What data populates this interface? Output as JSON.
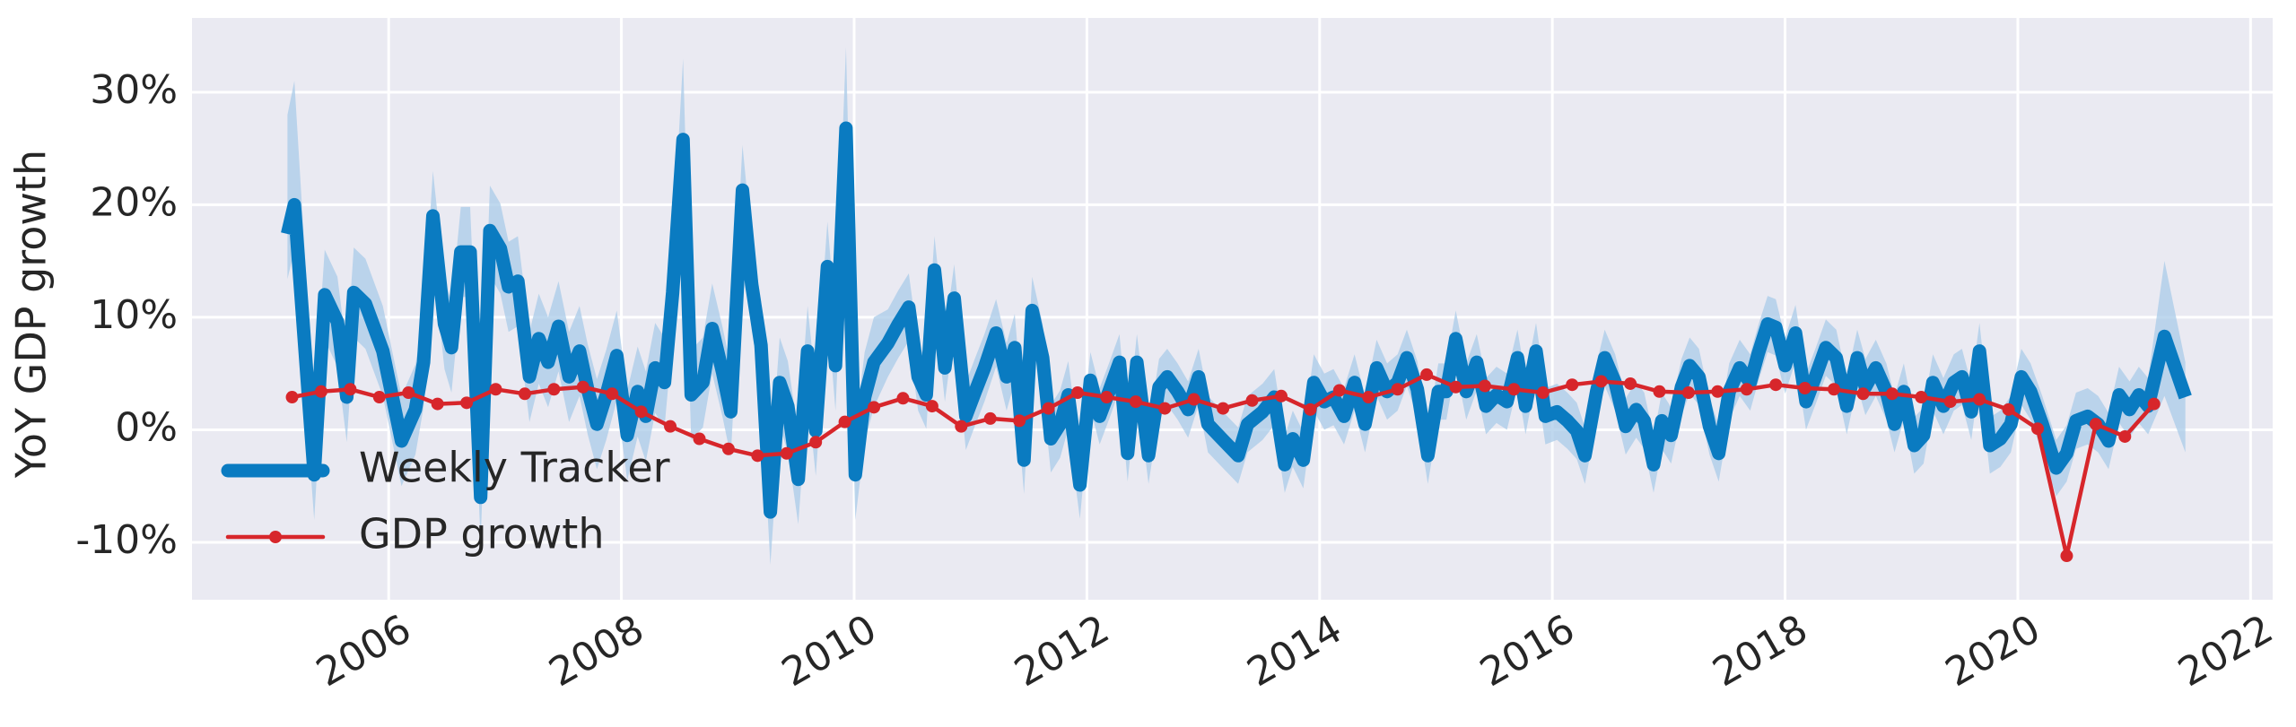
{
  "chart_data": {
    "type": "line",
    "ylabel": "YoY GDP growth",
    "xlim": [
      2004.31,
      2022.19
    ],
    "xticks": [
      2006,
      2008,
      2010,
      2012,
      2014,
      2016,
      2018,
      2020,
      2022
    ],
    "ylim": [
      -15.1,
      36.6
    ],
    "yticks": [
      {
        "value": -10,
        "label": "-10%"
      },
      {
        "value": 0,
        "label": "0%"
      },
      {
        "value": 10,
        "label": "10%"
      },
      {
        "value": 20,
        "label": "20%"
      },
      {
        "value": 30,
        "label": "30%"
      }
    ],
    "grid": true,
    "legend": "lower left",
    "series": [
      {
        "name": "Weekly Tracker",
        "color": "#0a7bc1",
        "band_color": "#a9cbe8",
        "x": [
          2005.13,
          2005.19,
          2005.36,
          2005.45,
          2005.56,
          2005.64,
          2005.7,
          2005.8,
          2005.95,
          2006.11,
          2006.23,
          2006.3,
          2006.38,
          2006.48,
          2006.54,
          2006.62,
          2006.7,
          2006.79,
          2006.87,
          2006.96,
          2007.03,
          2007.11,
          2007.21,
          2007.29,
          2007.37,
          2007.46,
          2007.55,
          2007.64,
          2007.71,
          2007.79,
          2007.87,
          2007.96,
          2008.05,
          2008.14,
          2008.21,
          2008.29,
          2008.37,
          2008.44,
          2008.53,
          2008.6,
          2008.7,
          2008.78,
          2008.87,
          2008.94,
          2009.04,
          2009.12,
          2009.2,
          2009.28,
          2009.36,
          2009.43,
          2009.52,
          2009.6,
          2009.67,
          2009.77,
          2009.84,
          2009.93,
          2010.01,
          2010.09,
          2010.17,
          2010.29,
          2010.38,
          2010.47,
          2010.55,
          2010.62,
          2010.69,
          2010.78,
          2010.86,
          2010.96,
          2011.04,
          2011.12,
          2011.22,
          2011.31,
          2011.38,
          2011.46,
          2011.53,
          2011.62,
          2011.69,
          2011.77,
          2011.84,
          2011.94,
          2012.03,
          2012.11,
          2012.19,
          2012.28,
          2012.35,
          2012.43,
          2012.53,
          2012.62,
          2012.69,
          2012.78,
          2012.87,
          2012.96,
          2013.04,
          2013.16,
          2013.3,
          2013.38,
          2013.51,
          2013.61,
          2013.7,
          2013.77,
          2013.86,
          2013.95,
          2014.04,
          2014.12,
          2014.21,
          2014.3,
          2014.39,
          2014.49,
          2014.58,
          2014.67,
          2014.75,
          2014.84,
          2014.93,
          2015.02,
          2015.09,
          2015.17,
          2015.26,
          2015.35,
          2015.43,
          2015.52,
          2015.61,
          2015.7,
          2015.77,
          2015.86,
          2015.94,
          2016.04,
          2016.13,
          2016.21,
          2016.28,
          2016.38,
          2016.45,
          2016.54,
          2016.63,
          2016.72,
          2016.79,
          2016.87,
          2016.94,
          2017.02,
          2017.11,
          2017.18,
          2017.26,
          2017.35,
          2017.43,
          2017.52,
          2017.61,
          2017.7,
          2017.77,
          2017.85,
          2017.92,
          2018.0,
          2018.09,
          2018.18,
          2018.26,
          2018.35,
          2018.44,
          2018.53,
          2018.62,
          2018.69,
          2018.78,
          2018.87,
          2018.94,
          2019.02,
          2019.11,
          2019.19,
          2019.27,
          2019.36,
          2019.45,
          2019.52,
          2019.6,
          2019.67,
          2019.76,
          2019.85,
          2019.94,
          2020.03,
          2020.11,
          2020.21,
          2020.33,
          2020.42,
          2020.5,
          2020.6,
          2020.69,
          2020.78,
          2020.87,
          2020.96,
          2021.04,
          2021.12,
          2021.26,
          2021.44
        ],
        "values": [
          17.4,
          20,
          -4,
          12,
          9.6,
          2.9,
          12.2,
          11.2,
          7,
          -1,
          1.8,
          6,
          19,
          9.4,
          7.3,
          15.8,
          15.8,
          -6,
          17.7,
          16.1,
          12.7,
          13.2,
          4.7,
          8.1,
          6,
          9.2,
          4.7,
          7,
          3.6,
          0.5,
          3.1,
          6.6,
          -0.5,
          3.4,
          1.2,
          5.5,
          4.2,
          12.2,
          25.8,
          3.1,
          4.2,
          9,
          5.1,
          1.6,
          21.3,
          12.9,
          7.5,
          -7.3,
          4.2,
          2.1,
          -4.4,
          7,
          -0.1,
          14.5,
          5.7,
          26.8,
          -4,
          2.9,
          6,
          7.7,
          9.4,
          10.9,
          4.7,
          3.1,
          14.2,
          5.5,
          11.7,
          1.2,
          3.4,
          5.5,
          8.6,
          4.7,
          7.3,
          -2.7,
          10.6,
          6.4,
          -0.8,
          0.5,
          3.1,
          -4.9,
          4.4,
          1.2,
          3.4,
          6,
          -2.1,
          6,
          -2.3,
          3.8,
          4.7,
          3.4,
          1.8,
          4.7,
          0.5,
          -0.8,
          -2.3,
          0.5,
          1.6,
          2.9,
          -3.1,
          -0.8,
          -2.7,
          4.2,
          2.5,
          2.9,
          1.2,
          4.2,
          0.5,
          5.5,
          3.4,
          4.2,
          6.4,
          3.6,
          -2.3,
          3.4,
          3.4,
          8.1,
          3.4,
          6,
          2.1,
          3.1,
          2.5,
          6.4,
          2.1,
          7,
          1.2,
          1.6,
          0.8,
          -0.1,
          -2.3,
          3.4,
          6.4,
          4.2,
          0.3,
          1.8,
          0.8,
          -3.1,
          0.8,
          -0.5,
          3.8,
          5.7,
          4.7,
          0.3,
          -2.1,
          3.4,
          5.5,
          4.2,
          6.8,
          9.4,
          9.1,
          5.7,
          8.6,
          2.5,
          4.7,
          7.3,
          6.4,
          2.1,
          6.4,
          3.8,
          5.5,
          3.4,
          0.5,
          3.4,
          -1.4,
          -0.5,
          4.2,
          2.1,
          4.2,
          4.7,
          1.6,
          7,
          -1.4,
          -0.8,
          0.5,
          4.7,
          3.4,
          0.5,
          -3.4,
          -2.1,
          0.8,
          1.2,
          0.5,
          -1,
          3.1,
          1.8,
          3.1,
          2.1,
          8.3,
          2.9
        ],
        "lower": [
          13.4,
          16,
          -8,
          8,
          5.6,
          -1.1,
          8.2,
          7.2,
          3,
          -5,
          -2.2,
          2,
          15,
          5.4,
          3.3,
          11.8,
          11.8,
          -10,
          13.7,
          12.1,
          8.7,
          9.2,
          0.7,
          4.1,
          2,
          5.2,
          0.7,
          3,
          -0.4,
          -3.5,
          -0.9,
          2.6,
          -4.5,
          -0.6,
          -2.8,
          1.5,
          0.2,
          8.2,
          21.8,
          -0.9,
          0.2,
          5,
          1.1,
          -2.4,
          17.3,
          8.9,
          3.5,
          -12,
          0.2,
          -1.9,
          -8.4,
          3,
          -4.1,
          10.5,
          1.7,
          22.8,
          -8,
          -1.1,
          2,
          4.7,
          6.4,
          7.9,
          1.7,
          0.1,
          11.2,
          2.5,
          8.7,
          -1.8,
          0.4,
          2.5,
          5.6,
          1.7,
          4.3,
          -5.7,
          7.6,
          3.4,
          -3.8,
          -2.5,
          0.1,
          -7.9,
          1.9,
          -1.3,
          0.9,
          3.5,
          -4.6,
          3.5,
          -4.8,
          1.3,
          2.2,
          0.9,
          -0.7,
          2.2,
          -2,
          -3.3,
          -4.8,
          -2,
          -0.9,
          0.4,
          -5.6,
          -3.3,
          -5.2,
          1.7,
          0,
          0.4,
          -1.3,
          1.7,
          -2,
          3,
          0.9,
          1.7,
          3.9,
          1.1,
          -4.8,
          0.9,
          0.9,
          5.6,
          0.9,
          3.5,
          -0.4,
          0.6,
          0,
          3.9,
          -0.4,
          4.5,
          -1.3,
          -0.9,
          -1.7,
          -2.6,
          -4.8,
          0.9,
          3.9,
          1.7,
          -2.2,
          -0.7,
          -1.7,
          -5.6,
          -1.7,
          -3,
          1.3,
          3.2,
          2.2,
          -2.2,
          -4.6,
          0.9,
          3,
          1.7,
          4.3,
          6.9,
          6.6,
          3.2,
          6.1,
          0,
          2.2,
          4.8,
          3.9,
          -0.4,
          3.9,
          1.3,
          3,
          0.9,
          -2,
          0.9,
          -3.9,
          -3,
          1.7,
          -0.4,
          1.7,
          2.2,
          -0.9,
          4.5,
          -3.9,
          -3.3,
          -2,
          2.2,
          0.9,
          -2,
          -5.9,
          -4.6,
          -1.7,
          -1.3,
          -2,
          -3.5,
          0.6,
          -0.7,
          0.6,
          -0.4,
          3,
          -2
        ],
        "upper": [
          28,
          31,
          2,
          16,
          13.6,
          6.9,
          16.2,
          15.2,
          11,
          3,
          5.8,
          10,
          23,
          13.4,
          11.3,
          19.8,
          19.8,
          -2,
          21.7,
          20.1,
          16.7,
          17.2,
          8.7,
          12.1,
          10,
          13.2,
          8.7,
          11,
          7.6,
          4.5,
          7.1,
          10.6,
          3.5,
          7.4,
          5.2,
          9.5,
          8.2,
          16.2,
          33,
          7.1,
          8.2,
          13,
          9.1,
          5.6,
          25.3,
          16.9,
          11.5,
          -3.3,
          8.2,
          6.1,
          -0.4,
          11,
          3.9,
          18.5,
          9.7,
          34,
          0,
          6.9,
          10,
          10.7,
          12.4,
          13.9,
          7.7,
          6.1,
          17.2,
          8.5,
          14.7,
          4.2,
          6.4,
          8.5,
          11.6,
          7.7,
          10.3,
          0.3,
          13.6,
          9.4,
          2.2,
          3.5,
          6.1,
          -1.9,
          6.9,
          3.7,
          5.9,
          8.5,
          0.4,
          8.5,
          0.2,
          6.3,
          7.2,
          5.9,
          4.3,
          7.2,
          3,
          1.7,
          0.2,
          3,
          4.1,
          5.4,
          -0.6,
          1.7,
          -0.2,
          6.7,
          5,
          5.4,
          3.7,
          6.7,
          3,
          8,
          5.9,
          6.7,
          8.9,
          6.1,
          0.2,
          5.9,
          5.9,
          10.6,
          5.9,
          8.5,
          4.6,
          5.6,
          5,
          8.9,
          4.6,
          9.5,
          3.7,
          4.1,
          3.3,
          2.4,
          0.2,
          5.9,
          8.9,
          6.7,
          2.8,
          4.3,
          3.3,
          -0.6,
          3.3,
          2,
          6.3,
          8.2,
          7.2,
          2.8,
          0.4,
          5.9,
          8,
          6.7,
          9.3,
          11.9,
          11.6,
          8.2,
          11.1,
          5,
          7.2,
          9.8,
          8.9,
          4.6,
          8.9,
          6.3,
          8,
          5.9,
          3,
          5.9,
          1.1,
          2,
          6.7,
          4.6,
          6.7,
          7.2,
          4.1,
          9.5,
          1.1,
          1.7,
          3,
          7.2,
          5.9,
          3,
          -0.9,
          0.4,
          3.3,
          3.7,
          3,
          1.5,
          5.6,
          4.3,
          5.6,
          4.6,
          15,
          6
        ]
      },
      {
        "name": "GDP growth",
        "color": "#d7262b",
        "marker": "o",
        "x": [
          2005.17,
          2005.42,
          2005.67,
          2005.92,
          2006.17,
          2006.42,
          2006.67,
          2006.92,
          2007.17,
          2007.42,
          2007.67,
          2007.92,
          2008.17,
          2008.42,
          2008.67,
          2008.92,
          2009.17,
          2009.42,
          2009.67,
          2009.92,
          2010.17,
          2010.42,
          2010.67,
          2010.92,
          2011.17,
          2011.42,
          2011.67,
          2011.92,
          2012.17,
          2012.42,
          2012.67,
          2012.92,
          2013.17,
          2013.42,
          2013.67,
          2013.92,
          2014.17,
          2014.42,
          2014.67,
          2014.92,
          2015.17,
          2015.42,
          2015.67,
          2015.92,
          2016.17,
          2016.42,
          2016.67,
          2016.92,
          2017.17,
          2017.42,
          2017.67,
          2017.92,
          2018.17,
          2018.42,
          2018.67,
          2018.92,
          2019.17,
          2019.42,
          2019.67,
          2019.92,
          2020.17,
          2020.42,
          2020.67,
          2020.92,
          2021.17
        ],
        "values": [
          2.9,
          3.4,
          3.6,
          2.9,
          3.3,
          2.3,
          2.4,
          3.6,
          3.2,
          3.6,
          3.8,
          3.2,
          1.6,
          0.3,
          -0.8,
          -1.7,
          -2.3,
          -2.1,
          -1.1,
          0.7,
          2.0,
          2.8,
          2.1,
          0.3,
          1.0,
          0.8,
          1.9,
          3.3,
          2.9,
          2.5,
          1.9,
          2.7,
          1.9,
          2.6,
          3.0,
          1.8,
          3.5,
          2.9,
          3.6,
          4.9,
          3.8,
          3.9,
          3.6,
          3.3,
          4.0,
          4.3,
          4.1,
          3.4,
          3.3,
          3.4,
          3.6,
          4.0,
          3.7,
          3.6,
          3.2,
          3.2,
          2.9,
          2.5,
          2.7,
          1.8,
          0.1,
          -11.2,
          0.5,
          -0.6,
          2.3
        ]
      }
    ]
  }
}
